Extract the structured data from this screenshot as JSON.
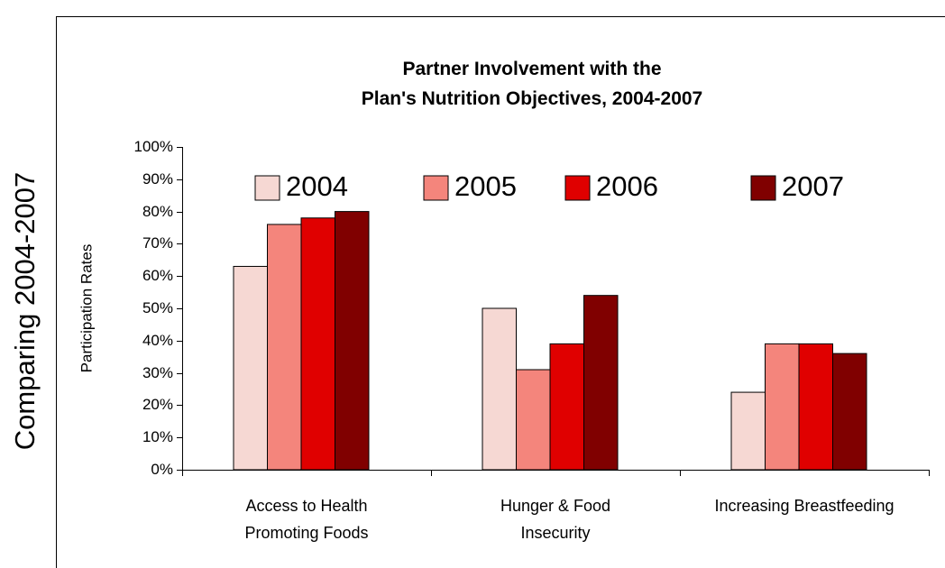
{
  "chart_data": {
    "type": "bar",
    "side_label": "Comparing 2004-2007",
    "title": "Partner Involvement with the\nPlan's Nutrition Objectives, 2004-2007",
    "y_axis_label": "Participation Rates",
    "categories": [
      "Access to Health\nPromoting Foods",
      "Hunger & Food\nInsecurity",
      "Increasing Breastfeeding"
    ],
    "series": [
      {
        "name": "2004",
        "color": "#f6d8d3",
        "values": [
          63,
          50,
          24
        ]
      },
      {
        "name": "2005",
        "color": "#f4857c",
        "values": [
          76,
          31,
          39
        ]
      },
      {
        "name": "2006",
        "color": "#e00000",
        "values": [
          78,
          39,
          39
        ]
      },
      {
        "name": "2007",
        "color": "#800000",
        "values": [
          80,
          54,
          36
        ]
      }
    ],
    "ylim": [
      0,
      100
    ],
    "yticks": [
      {
        "value": 0,
        "label": "0%"
      },
      {
        "value": 10,
        "label": "10%"
      },
      {
        "value": 20,
        "label": "20%"
      },
      {
        "value": 30,
        "label": "30%"
      },
      {
        "value": 40,
        "label": "40%"
      },
      {
        "value": 50,
        "label": "50%"
      },
      {
        "value": 60,
        "label": "60%"
      },
      {
        "value": 70,
        "label": "70%"
      },
      {
        "value": 80,
        "label": "80%"
      },
      {
        "value": 90,
        "label": "90%"
      },
      {
        "value": 100,
        "label": "100%"
      }
    ],
    "legend": "top"
  }
}
